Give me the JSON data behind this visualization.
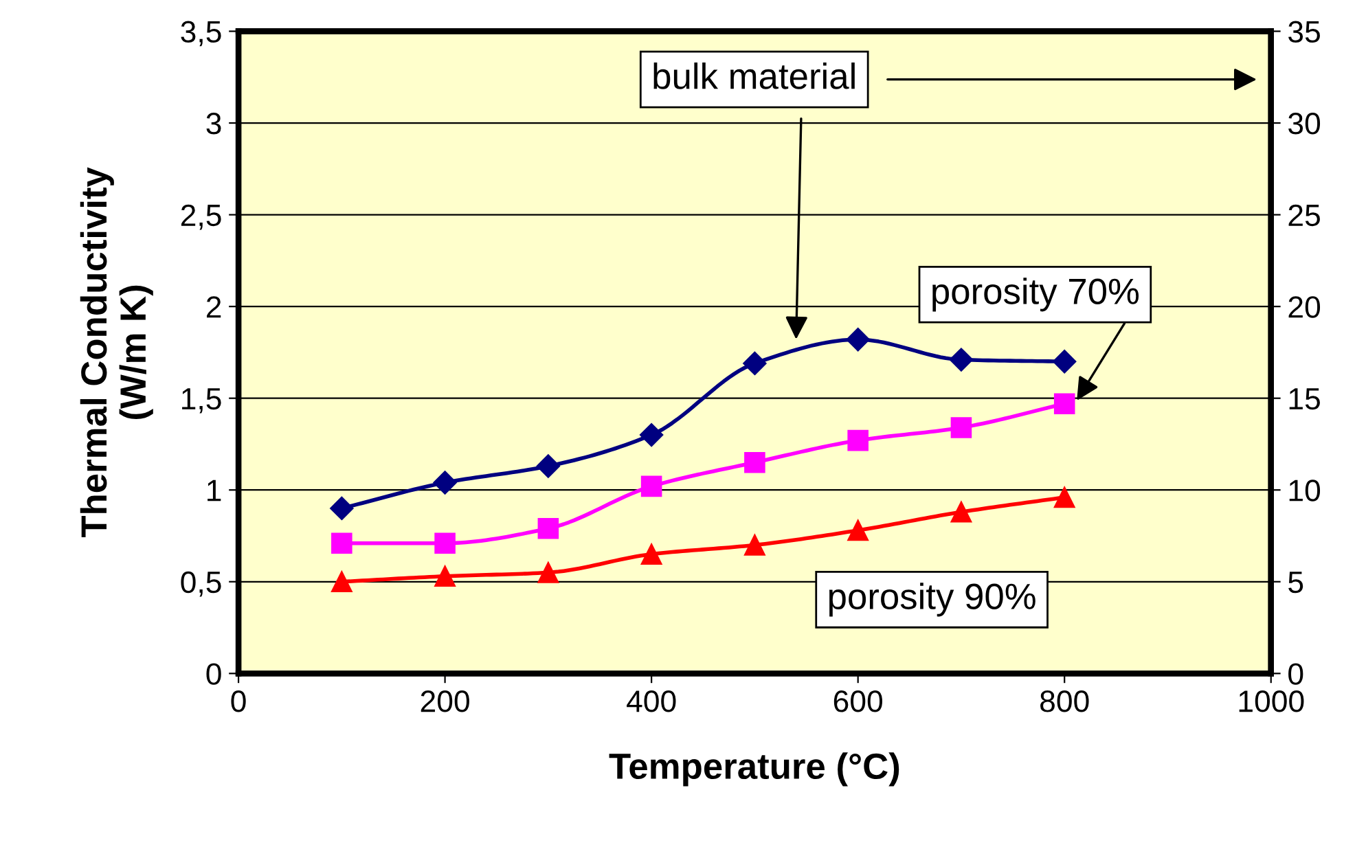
{
  "chart_data": {
    "type": "line",
    "xlabel": "Temperature (°C)",
    "ylabel": "Thermal Conductivity\n(W/m K)",
    "x": [
      100,
      200,
      300,
      400,
      500,
      600,
      700,
      800
    ],
    "series": [
      {
        "name": "bulk material",
        "color": "#000080",
        "marker": "diamond",
        "axis": "y2",
        "values": [
          9.0,
          10.4,
          11.3,
          13.0,
          16.9,
          18.2,
          17.1,
          17.0
        ]
      },
      {
        "name": "porosity 70%",
        "color": "#ff00ff",
        "marker": "square",
        "values": [
          0.71,
          0.71,
          0.79,
          1.02,
          1.15,
          1.27,
          1.34,
          1.47
        ]
      },
      {
        "name": "porosity 90%",
        "color": "#ff0000",
        "marker": "triangle",
        "values": [
          0.5,
          0.53,
          0.55,
          0.65,
          0.7,
          0.78,
          0.88,
          0.96
        ]
      }
    ],
    "xlim": [
      0,
      1000
    ],
    "xticks": [
      0,
      200,
      400,
      600,
      800,
      1000
    ],
    "ylim": [
      0,
      3.5
    ],
    "yticks": [
      0,
      {
        "value": 0.5,
        "label": "0,5"
      },
      1,
      {
        "value": 1.5,
        "label": "1,5"
      },
      2,
      {
        "value": 2.5,
        "label": "2,5"
      },
      3,
      {
        "value": 3.5,
        "label": "3,5"
      }
    ],
    "y2lim": [
      0,
      35
    ],
    "y2ticks": [
      0,
      5,
      10,
      15,
      20,
      25,
      30,
      35
    ],
    "grid": "y",
    "legend": false,
    "line_style": "solid"
  }
}
